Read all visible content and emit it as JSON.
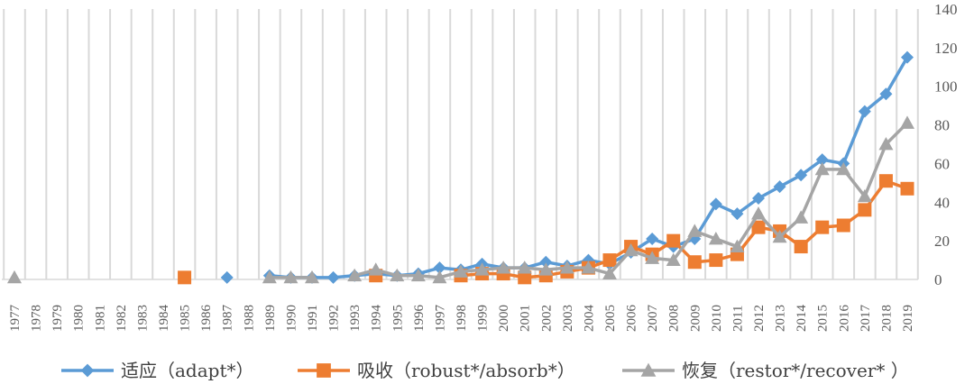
{
  "chart_data": {
    "type": "line",
    "title": "",
    "xlabel": "",
    "ylabel": "",
    "ylim": [
      0,
      140
    ],
    "yticks": [
      0,
      20,
      40,
      60,
      80,
      100,
      120,
      140
    ],
    "y_axis_side": "right",
    "grid": "vertical",
    "legend_position": "bottom",
    "categories": [
      "1977",
      "1978",
      "1979",
      "1980",
      "1981",
      "1982",
      "1983",
      "1984",
      "1985",
      "1986",
      "1987",
      "1988",
      "1989",
      "1990",
      "1991",
      "1992",
      "1993",
      "1994",
      "1995",
      "1996",
      "1997",
      "1998",
      "1999",
      "2000",
      "2001",
      "2002",
      "2003",
      "2004",
      "2005",
      "2006",
      "2007",
      "2008",
      "2009",
      "2010",
      "2011",
      "2012",
      "2013",
      "2014",
      "2015",
      "2016",
      "2017",
      "2018",
      "2019"
    ],
    "series": [
      {
        "name": "适应（adapt*）",
        "color": "#5B9BD5",
        "marker": "diamond",
        "values": [
          null,
          null,
          null,
          null,
          null,
          null,
          null,
          null,
          null,
          null,
          1,
          null,
          2,
          1,
          1,
          1,
          2,
          3,
          2,
          3,
          6,
          5,
          8,
          6,
          6,
          9,
          7,
          10,
          8,
          14,
          21,
          17,
          21,
          39,
          34,
          42,
          48,
          54,
          62,
          60,
          87,
          96,
          115
        ]
      },
      {
        "name": "吸收（robust*/absorb*）",
        "color": "#ED7D31",
        "marker": "square",
        "values": [
          null,
          null,
          null,
          null,
          null,
          null,
          null,
          null,
          1,
          null,
          null,
          null,
          null,
          null,
          null,
          null,
          null,
          2,
          null,
          null,
          null,
          2,
          3,
          3,
          1,
          2,
          4,
          6,
          10,
          17,
          13,
          20,
          9,
          10,
          13,
          27,
          25,
          17,
          27,
          28,
          36,
          51,
          47
        ]
      },
      {
        "name": "恢复（restor*/recover* ）",
        "color": "#A5A5A5",
        "marker": "triangle",
        "values": [
          1,
          null,
          null,
          null,
          null,
          null,
          null,
          null,
          null,
          null,
          null,
          null,
          1,
          1,
          1,
          null,
          2,
          5,
          2,
          2,
          1,
          4,
          5,
          6,
          6,
          5,
          6,
          6,
          3,
          15,
          11,
          10,
          25,
          21,
          17,
          34,
          22,
          32,
          57,
          57,
          43,
          70,
          81
        ]
      }
    ]
  }
}
